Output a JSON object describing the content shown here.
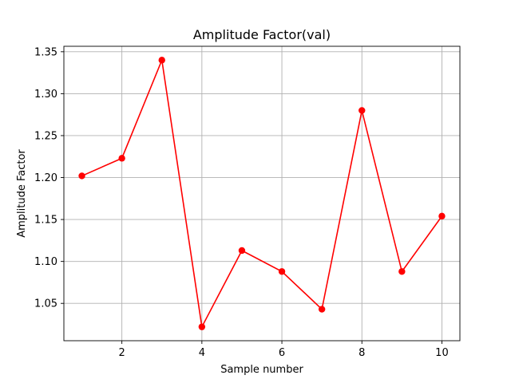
{
  "chart_data": {
    "type": "line",
    "title": "Amplitude Factor(val)",
    "xlabel": "Sample number",
    "ylabel": "Amplitude Factor",
    "x": [
      1,
      2,
      3,
      4,
      5,
      6,
      7,
      8,
      9,
      10
    ],
    "series": [
      {
        "values": [
          1.202,
          1.223,
          1.34,
          1.022,
          1.113,
          1.088,
          1.043,
          1.28,
          1.088,
          1.154
        ],
        "color": "#ff0000",
        "marker": "circle"
      }
    ],
    "xlim": [
      0.55,
      10.45
    ],
    "ylim": [
      1.0055,
      1.3565
    ],
    "xticks": [
      2,
      4,
      6,
      8,
      10
    ],
    "xtick_labels": [
      "2",
      "4",
      "6",
      "8",
      "10"
    ],
    "yticks": [
      1.05,
      1.1,
      1.15,
      1.2,
      1.25,
      1.3,
      1.35
    ],
    "ytick_labels": [
      "1.05",
      "1.10",
      "1.15",
      "1.20",
      "1.25",
      "1.30",
      "1.35"
    ],
    "grid": true,
    "legend": "none"
  }
}
